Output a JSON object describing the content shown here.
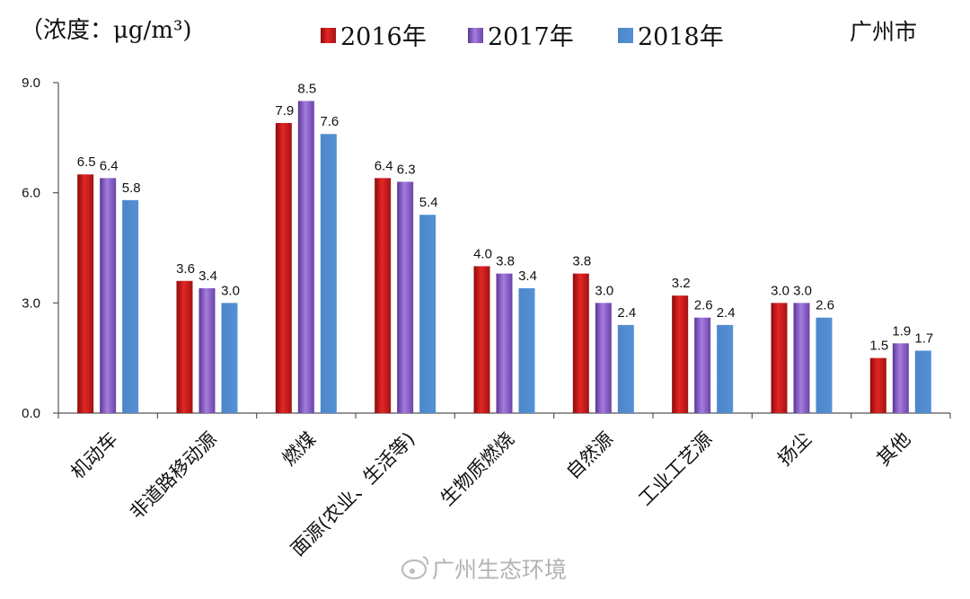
{
  "unit": "（浓度：μg/m³)",
  "city": "广州市",
  "watermark": "广州生态环境",
  "colors": {
    "series": [
      "#d11c1c",
      "#8a5cc4",
      "#4f88cc"
    ],
    "axis": "#555555"
  },
  "chart_data": {
    "type": "bar",
    "categories": [
      "机动车",
      "非道路移动源",
      "燃煤",
      "面源(农业、生活等)",
      "生物质燃烧",
      "自然源",
      "工业工艺源",
      "扬尘",
      "其他"
    ],
    "series": [
      {
        "name": "2016年",
        "values": [
          6.5,
          3.6,
          7.9,
          6.4,
          4.0,
          3.8,
          3.2,
          3.0,
          1.5
        ]
      },
      {
        "name": "2017年",
        "values": [
          6.4,
          3.4,
          8.5,
          6.3,
          3.8,
          3.0,
          2.6,
          3.0,
          1.9
        ]
      },
      {
        "name": "2018年",
        "values": [
          5.8,
          3.0,
          7.6,
          5.4,
          3.4,
          2.4,
          2.4,
          2.6,
          1.7
        ]
      }
    ],
    "yticks": [
      "0.0",
      "3.0",
      "6.0",
      "9.0"
    ],
    "ylim": [
      0,
      9
    ],
    "grid": false,
    "legend_position": "top"
  }
}
